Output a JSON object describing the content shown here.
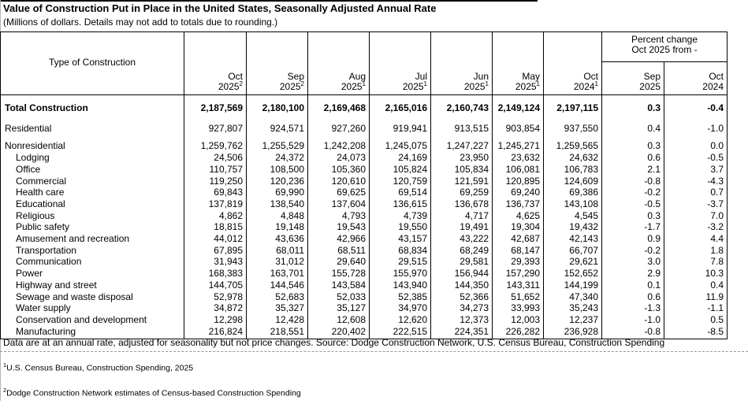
{
  "title": "Value of Construction Put in Place in the United States, Seasonally Adjusted Annual Rate",
  "subtitle": "(Millions of dollars. Details may not add to totals due to rounding.)",
  "table": {
    "type_header": "Type of Construction",
    "month_columns": [
      {
        "month": "Oct",
        "year": "2025",
        "sup": "2"
      },
      {
        "month": "Sep",
        "year": "2025",
        "sup": "2"
      },
      {
        "month": "Aug",
        "year": "2025",
        "sup": "1"
      },
      {
        "month": "Jul",
        "year": "2025",
        "sup": "1"
      },
      {
        "month": "Jun",
        "year": "2025",
        "sup": "1"
      },
      {
        "month": "May",
        "year": "2025",
        "sup": "1"
      },
      {
        "month": "Oct",
        "year": "2024",
        "sup": "1"
      }
    ],
    "percent_header": {
      "line1": "Percent change",
      "line2": "Oct 2025 from -"
    },
    "percent_columns": [
      {
        "month": "Sep",
        "year": "2025"
      },
      {
        "month": "Oct",
        "year": "2024"
      }
    ],
    "rows": [
      {
        "label": "Total Construction",
        "bold": true,
        "indent": false,
        "values": [
          "2,187,569",
          "2,180,100",
          "2,169,468",
          "2,165,016",
          "2,160,743",
          "2,149,124",
          "2,197,115"
        ],
        "pct": [
          "0.3",
          "-0.4"
        ]
      },
      {
        "label": "Residential",
        "bold": false,
        "indent": false,
        "values": [
          "927,807",
          "924,571",
          "927,260",
          "919,941",
          "913,515",
          "903,854",
          "937,550"
        ],
        "pct": [
          "0.4",
          "-1.0"
        ]
      },
      {
        "label": "Nonresidential",
        "bold": false,
        "indent": false,
        "values": [
          "1,259,762",
          "1,255,529",
          "1,242,208",
          "1,245,075",
          "1,247,227",
          "1,245,271",
          "1,259,565"
        ],
        "pct": [
          "0.3",
          "0.0"
        ]
      },
      {
        "label": "Lodging",
        "bold": false,
        "indent": true,
        "values": [
          "24,506",
          "24,372",
          "24,073",
          "24,169",
          "23,950",
          "23,632",
          "24,632"
        ],
        "pct": [
          "0.6",
          "-0.5"
        ]
      },
      {
        "label": "Office",
        "bold": false,
        "indent": true,
        "values": [
          "110,757",
          "108,500",
          "105,360",
          "105,824",
          "105,834",
          "106,081",
          "106,783"
        ],
        "pct": [
          "2.1",
          "3.7"
        ]
      },
      {
        "label": "Commercial",
        "bold": false,
        "indent": true,
        "values": [
          "119,250",
          "120,236",
          "120,610",
          "120,759",
          "121,591",
          "120,895",
          "124,609"
        ],
        "pct": [
          "-0.8",
          "-4.3"
        ]
      },
      {
        "label": "Health care",
        "bold": false,
        "indent": true,
        "values": [
          "69,843",
          "69,990",
          "69,625",
          "69,514",
          "69,259",
          "69,240",
          "69,386"
        ],
        "pct": [
          "-0.2",
          "0.7"
        ]
      },
      {
        "label": "Educational",
        "bold": false,
        "indent": true,
        "values": [
          "137,819",
          "138,540",
          "137,604",
          "136,615",
          "136,678",
          "136,737",
          "143,108"
        ],
        "pct": [
          "-0.5",
          "-3.7"
        ]
      },
      {
        "label": "Religious",
        "bold": false,
        "indent": true,
        "values": [
          "4,862",
          "4,848",
          "4,793",
          "4,739",
          "4,717",
          "4,625",
          "4,545"
        ],
        "pct": [
          "0.3",
          "7.0"
        ]
      },
      {
        "label": "Public safety",
        "bold": false,
        "indent": true,
        "values": [
          "18,815",
          "19,148",
          "19,543",
          "19,550",
          "19,491",
          "19,304",
          "19,432"
        ],
        "pct": [
          "-1.7",
          "-3.2"
        ]
      },
      {
        "label": "Amusement and recreation",
        "bold": false,
        "indent": true,
        "values": [
          "44,012",
          "43,636",
          "42,966",
          "43,157",
          "43,222",
          "42,687",
          "42,143"
        ],
        "pct": [
          "0.9",
          "4.4"
        ]
      },
      {
        "label": "Transportation",
        "bold": false,
        "indent": true,
        "values": [
          "67,895",
          "68,011",
          "68,511",
          "68,834",
          "68,249",
          "68,147",
          "66,707"
        ],
        "pct": [
          "-0.2",
          "1.8"
        ]
      },
      {
        "label": "Communication",
        "bold": false,
        "indent": true,
        "values": [
          "31,943",
          "31,012",
          "29,640",
          "29,515",
          "29,581",
          "29,393",
          "29,621"
        ],
        "pct": [
          "3.0",
          "7.8"
        ]
      },
      {
        "label": "Power",
        "bold": false,
        "indent": true,
        "values": [
          "168,383",
          "163,701",
          "155,728",
          "155,970",
          "156,944",
          "157,290",
          "152,652"
        ],
        "pct": [
          "2.9",
          "10.3"
        ]
      },
      {
        "label": "Highway and street",
        "bold": false,
        "indent": true,
        "values": [
          "144,705",
          "144,546",
          "143,584",
          "143,940",
          "144,350",
          "143,311",
          "144,199"
        ],
        "pct": [
          "0.1",
          "0.4"
        ]
      },
      {
        "label": "Sewage and waste disposal",
        "bold": false,
        "indent": true,
        "values": [
          "52,978",
          "52,683",
          "52,033",
          "52,385",
          "52,366",
          "51,652",
          "47,340"
        ],
        "pct": [
          "0.6",
          "11.9"
        ]
      },
      {
        "label": "Water supply",
        "bold": false,
        "indent": true,
        "values": [
          "34,872",
          "35,327",
          "35,127",
          "34,970",
          "34,273",
          "33,993",
          "35,243"
        ],
        "pct": [
          "-1.3",
          "-1.1"
        ]
      },
      {
        "label": "Conservation and development",
        "bold": false,
        "indent": true,
        "values": [
          "12,298",
          "12,428",
          "12,608",
          "12,620",
          "12,373",
          "12,003",
          "12,237"
        ],
        "pct": [
          "-1.0",
          "0.5"
        ]
      },
      {
        "label": "Manufacturing",
        "bold": false,
        "indent": true,
        "values": [
          "216,824",
          "218,551",
          "220,402",
          "222,515",
          "224,351",
          "226,282",
          "236,928"
        ],
        "pct": [
          "-0.8",
          "-8.5"
        ]
      }
    ]
  },
  "note": "Data are at an annual rate, adjusted for seasonality but not price changes. Source: Dodge Construction Network, U.S. Census Bureau, Construction Spending",
  "footnotes": [
    {
      "sup": "1",
      "text": "U.S. Census Bureau, Construction Spending,  2025"
    },
    {
      "sup": "2",
      "text": "Dodge Construction Network estimates of Census-based Construction Spending"
    }
  ]
}
